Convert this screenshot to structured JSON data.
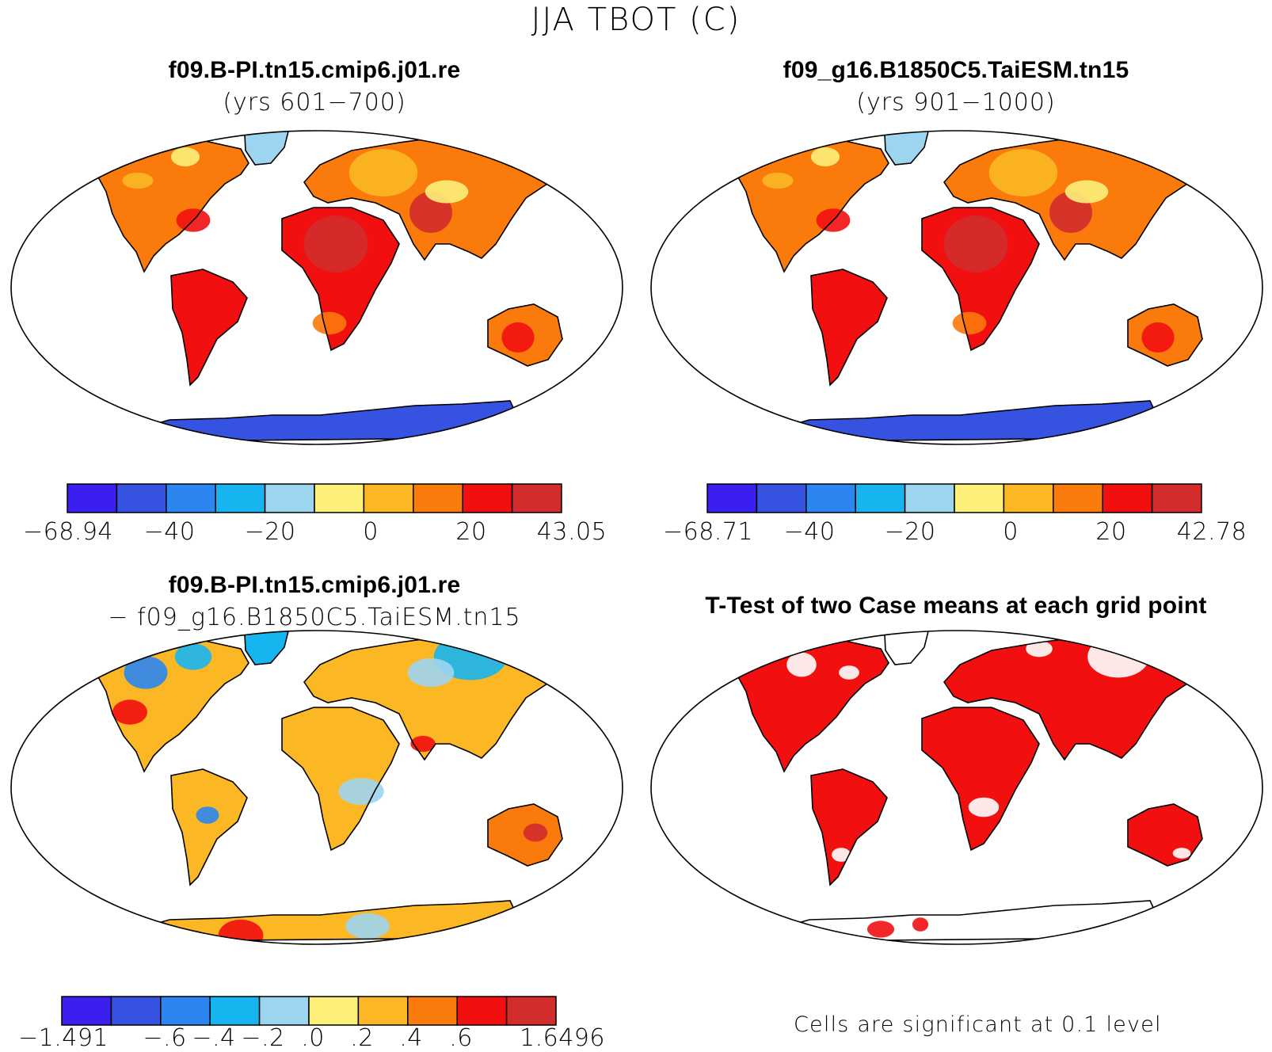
{
  "title": "JJA TBOT (C)",
  "palette": [
    "#3a1ff0",
    "#3552e0",
    "#2b86f0",
    "#17b5f0",
    "#9dd5f0",
    "#fcef7a",
    "#fbb824",
    "#fb7a0c",
    "#f20f0f",
    "#d22c2c"
  ],
  "panels": {
    "top_left": {
      "case": "f09.B-PI.tn15.cmip6.j01.re",
      "years": "(yrs 601−700)",
      "colorbar_labels": [
        "−68.94",
        "−40",
        "−20",
        "0",
        "20",
        "43.05"
      ]
    },
    "top_right": {
      "case": "f09_g16.B1850C5.TaiESM.tn15",
      "years": "(yrs 901−1000)",
      "colorbar_labels": [
        "−68.71",
        "−40",
        "−20",
        "0",
        "20",
        "42.78"
      ]
    },
    "bottom_left": {
      "case1": "f09.B-PI.tn15.cmip6.j01.re",
      "case2": "− f09_g16.B1850C5.TaiESM.tn15",
      "colorbar_labels": [
        "−1.491",
        "−.6",
        "−.4",
        "−.2",
        ".0",
        ".2",
        ".4",
        ".6",
        "1.6496"
      ]
    },
    "bottom_right": {
      "title": "T-Test of two Case means at each grid point",
      "note": "Cells are significant at 0.1 level",
      "significance_color": "#f20f0f"
    }
  }
}
